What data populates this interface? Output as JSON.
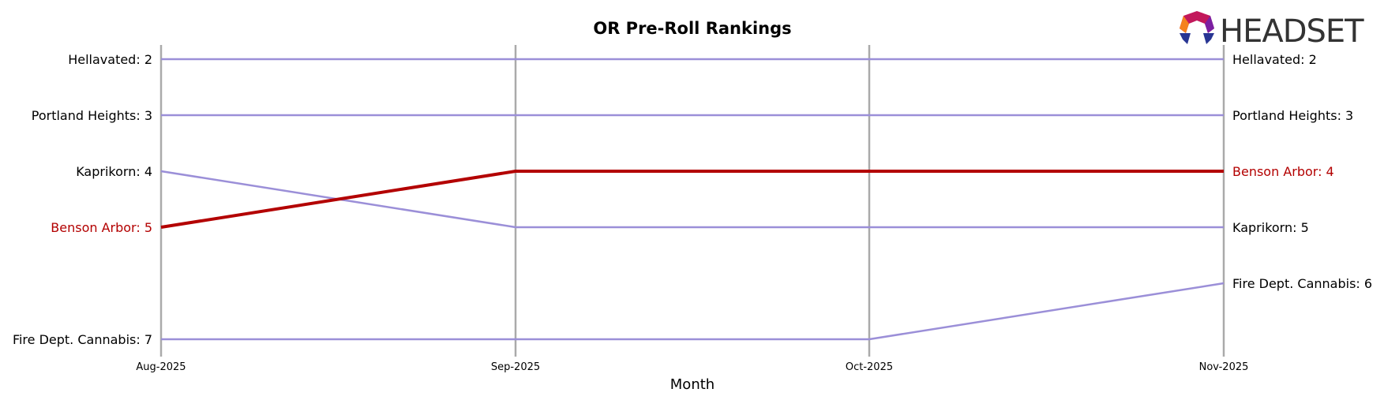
{
  "logo": {
    "text": "HEADSET",
    "colors": [
      "#f5821f",
      "#c2185b",
      "#7b1fa2",
      "#283593"
    ]
  },
  "colors": {
    "highlight": "#b30000",
    "other": "#9b8fd8",
    "month_line": "#aaaaaa"
  },
  "chart_data": {
    "type": "line",
    "title": "OR Pre-Roll Rankings",
    "xlabel": "Month",
    "ylabel": "",
    "x": [
      "Aug-2025",
      "Sep-2025",
      "Oct-2025",
      "Nov-2025"
    ],
    "y_axis": "rank, inverted (rank 2 at top, rank 7 at bottom)",
    "ylim": [
      7,
      2
    ],
    "grid": "vertical lines at each month",
    "highlight_series": "Benson Arbor",
    "series": [
      {
        "name": "Hellavated",
        "values": [
          2,
          2,
          2,
          2
        ],
        "highlight": false
      },
      {
        "name": "Portland Heights",
        "values": [
          3,
          3,
          3,
          3
        ],
        "highlight": false
      },
      {
        "name": "Kaprikorn",
        "values": [
          4,
          5,
          5,
          5
        ],
        "highlight": false
      },
      {
        "name": "Benson Arbor",
        "values": [
          5,
          4,
          4,
          4
        ],
        "highlight": true
      },
      {
        "name": "Fire Dept. Cannabis",
        "values": [
          7,
          7,
          7,
          6
        ],
        "highlight": false
      }
    ],
    "left_labels": [
      "Hellavated: 2",
      "Portland Heights: 3",
      "Kaprikorn: 4",
      "Benson Arbor: 5",
      "Fire Dept. Cannabis: 7"
    ],
    "right_labels": [
      "Hellavated: 2",
      "Portland Heights: 3",
      "Benson Arbor: 4",
      "Kaprikorn: 5",
      "Fire Dept. Cannabis: 6"
    ]
  }
}
